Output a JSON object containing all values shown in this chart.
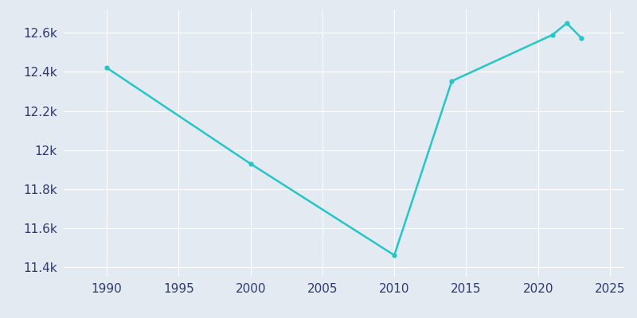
{
  "years": [
    1990,
    2000,
    2010,
    2014,
    2021,
    2022,
    2023
  ],
  "population": [
    12421,
    11929,
    11460,
    12353,
    12590,
    12650,
    12575
  ],
  "line_color": "#26C6C6",
  "bg_color": "#E4EAF2",
  "tick_color": "#2e3a6e",
  "grid_color": "#ffffff",
  "xlim": [
    1987,
    2026
  ],
  "ylim": [
    11350,
    12720
  ],
  "xticks": [
    1990,
    1995,
    2000,
    2005,
    2010,
    2015,
    2020,
    2025
  ],
  "yticks": [
    11400,
    11600,
    11800,
    12000,
    12200,
    12400,
    12600
  ],
  "ytick_labels": [
    "11.4k",
    "11.6k",
    "11.8k",
    "12k",
    "12.2k",
    "12.4k",
    "12.6k"
  ]
}
